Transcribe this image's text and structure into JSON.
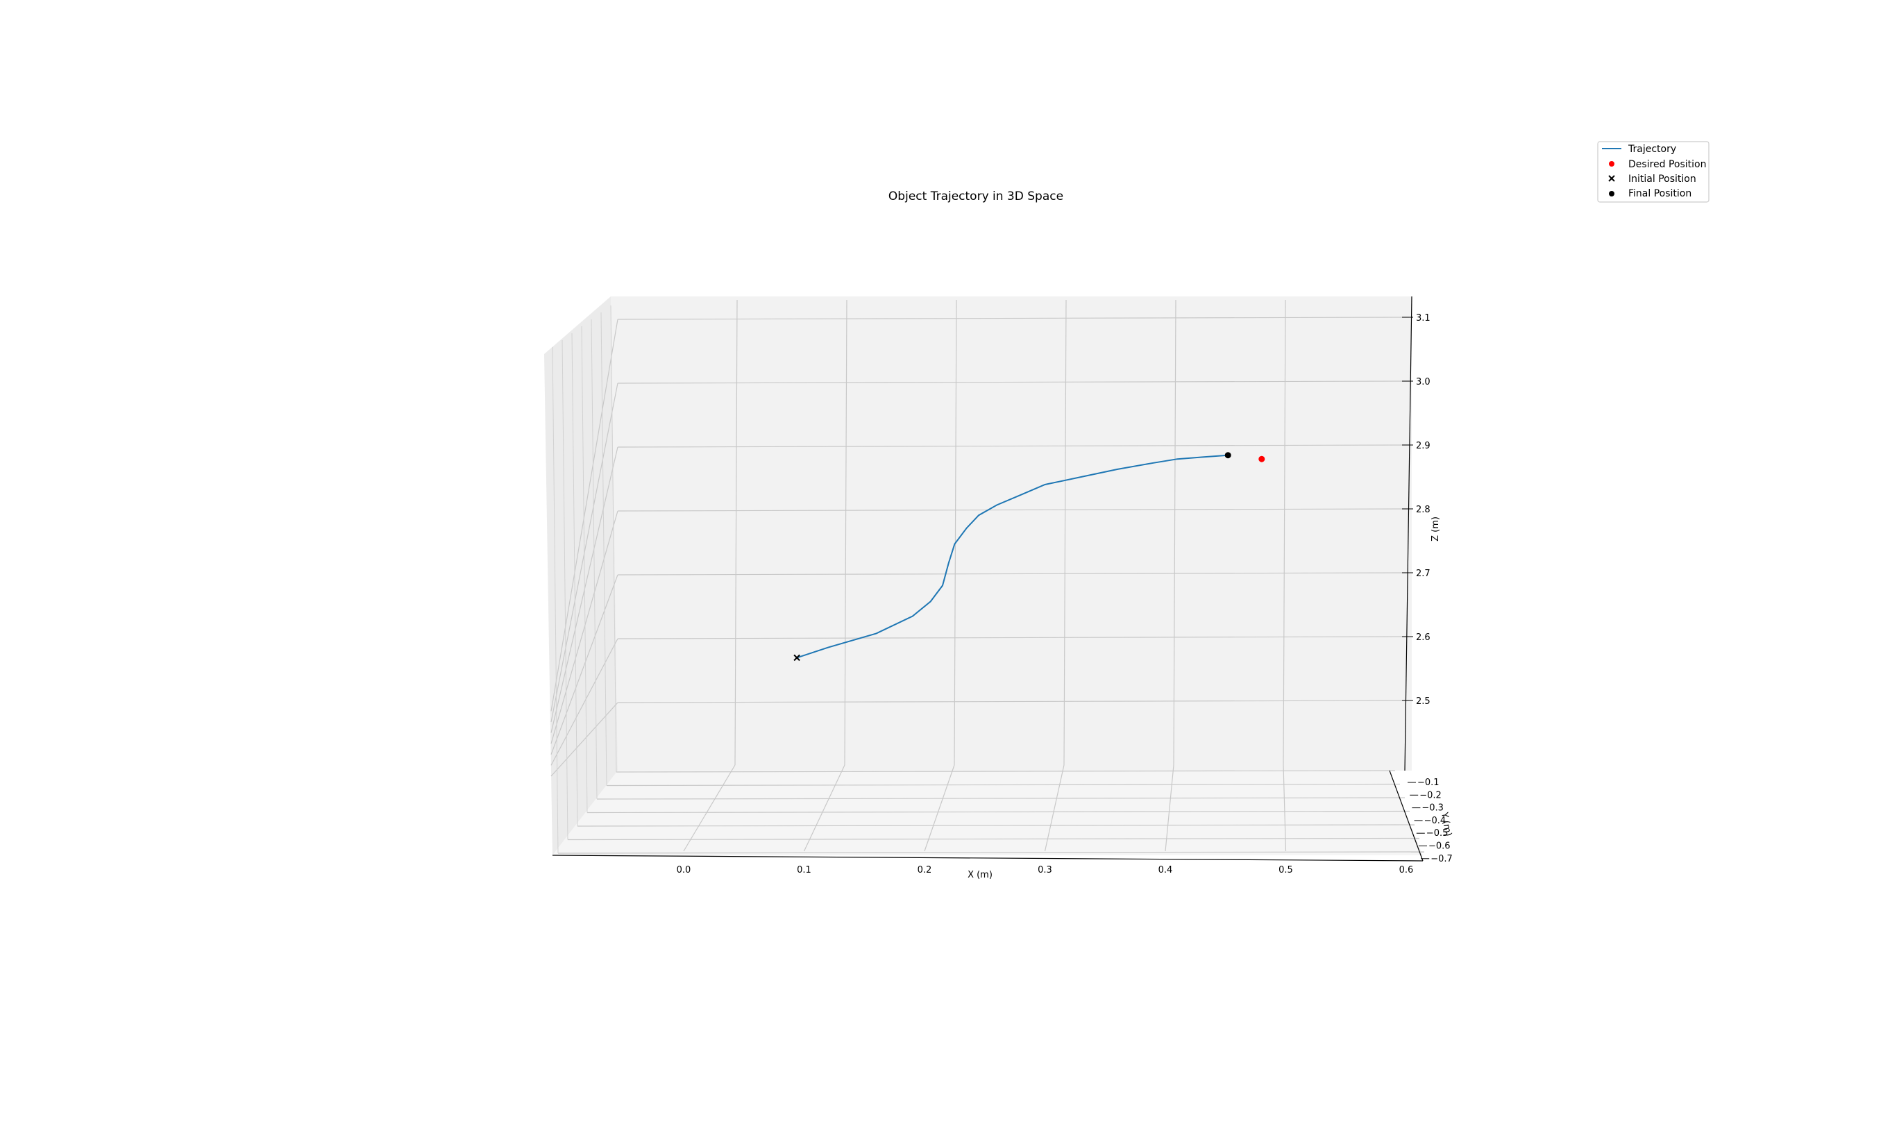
{
  "chart_data": {
    "type": "line",
    "projection": "3d",
    "title": "Object Trajectory in 3D Space",
    "xlabel": "X (m)",
    "ylabel": "Y (m)",
    "zlabel": "Z (m)",
    "xlim": [
      -0.11,
      0.61
    ],
    "ylim": [
      -0.7,
      -0.08
    ],
    "zlim": [
      2.41,
      3.12
    ],
    "x_ticks": [
      "0.0",
      "0.1",
      "0.2",
      "0.3",
      "0.4",
      "0.5",
      "0.6"
    ],
    "y_ticks": [
      "−0.1",
      "−0.2",
      "−0.3",
      "−0.4",
      "−0.5",
      "−0.6",
      "−0.7"
    ],
    "z_ticks": [
      "2.5",
      "2.6",
      "2.7",
      "2.8",
      "2.9",
      "3.0",
      "3.1"
    ],
    "grid": true,
    "legend_position": "top-right",
    "colors": {
      "trajectory": "#1f77b4",
      "desired": "#ff0000",
      "initial": "#000000",
      "final": "#000000",
      "pane": "#f2f2f2"
    },
    "series": [
      {
        "name": "Trajectory",
        "marker": "line",
        "x": [
          0.094,
          0.12,
          0.16,
          0.19,
          0.205,
          0.215,
          0.22,
          0.225,
          0.235,
          0.245,
          0.26,
          0.28,
          0.3,
          0.33,
          0.36,
          0.39,
          0.41,
          0.43,
          0.452
        ],
        "z": [
          2.567,
          2.583,
          2.605,
          2.632,
          2.655,
          2.68,
          2.715,
          2.745,
          2.77,
          2.79,
          2.806,
          2.822,
          2.838,
          2.85,
          2.862,
          2.872,
          2.878,
          2.881,
          2.884
        ]
      },
      {
        "name": "Desired Position",
        "marker": "dot",
        "x": [
          0.48
        ],
        "z": [
          2.878
        ]
      },
      {
        "name": "Initial Position",
        "marker": "x",
        "x": [
          0.094
        ],
        "z": [
          2.567
        ]
      },
      {
        "name": "Final Position",
        "marker": "dot",
        "x": [
          0.452
        ],
        "z": [
          2.884
        ]
      }
    ]
  }
}
